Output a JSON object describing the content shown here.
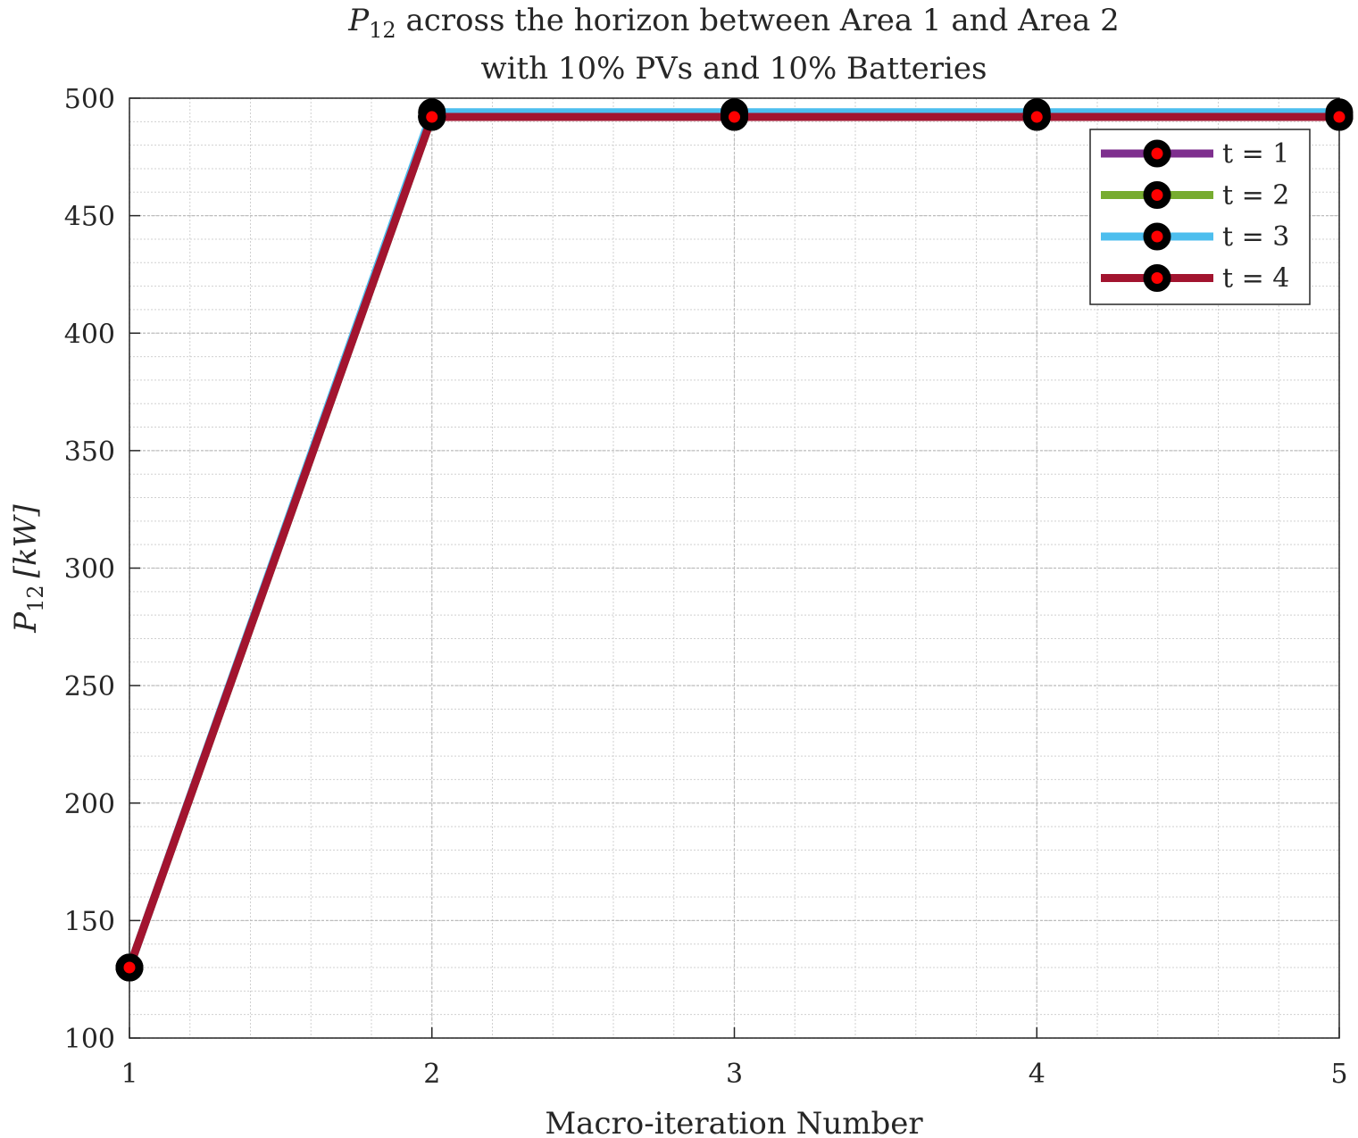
{
  "chart_data": {
    "type": "line",
    "title_symbol": "P",
    "title_subscript": "12",
    "title_rest": " across the horizon between Area 1 and Area 2",
    "subtitle": "with 10% PVs and 10% Batteries",
    "xlabel": "Macro-iteration Number",
    "ylabel_symbol": "P",
    "ylabel_subscript": "12",
    "ylabel_unit": "[kW]",
    "xlim": [
      1,
      5
    ],
    "ylim": [
      100,
      500
    ],
    "x_ticks": [
      "1",
      "2",
      "3",
      "4",
      "5"
    ],
    "y_ticks": [
      "100",
      "150",
      "200",
      "250",
      "300",
      "350",
      "400",
      "450",
      "500"
    ],
    "grid": true,
    "minor_grid": true,
    "legend_position": "top-right",
    "x": [
      1,
      2,
      3,
      4,
      5
    ],
    "series": [
      {
        "name": "t = 1",
        "color": "#7E2F8E",
        "values": [
          130,
          492,
          492,
          492,
          492
        ]
      },
      {
        "name": "t = 2",
        "color": "#77AC30",
        "values": [
          130,
          492,
          492,
          492,
          492
        ]
      },
      {
        "name": "t = 3",
        "color": "#4DBEEE",
        "values": [
          130,
          494,
          494,
          494,
          494
        ]
      },
      {
        "name": "t = 4",
        "color": "#A2142F",
        "values": [
          130,
          492,
          492,
          492,
          492
        ]
      }
    ],
    "marker": {
      "edge_color": "#000000",
      "face_color": "#FF0000"
    }
  }
}
